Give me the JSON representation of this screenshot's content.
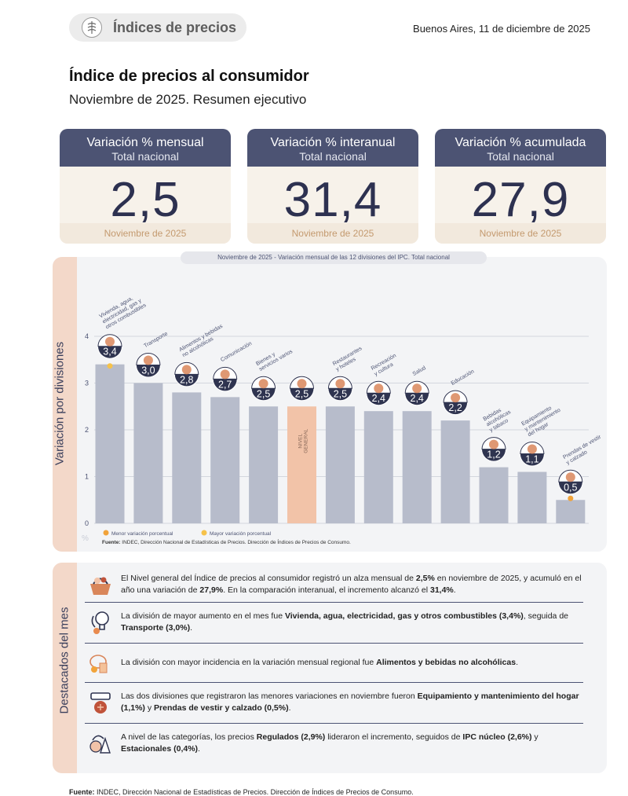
{
  "header": {
    "badge": "Índices de precios",
    "dateline": "Buenos Aires, 11 de diciembre de 2025",
    "title": "Índice de precios al consumidor",
    "subtitle": "Noviembre de 2025. Resumen ejecutivo"
  },
  "cards": [
    {
      "title": "Variación % mensual",
      "subtitle": "Total nacional",
      "value": "2,5",
      "period": "Noviembre de 2025"
    },
    {
      "title": "Variación % interanual",
      "subtitle": "Total nacional",
      "value": "31,4",
      "period": "Noviembre de 2025"
    },
    {
      "title": "Variación % acumulada",
      "subtitle": "Total nacional",
      "value": "27,9",
      "period": "Noviembre de 2025"
    }
  ],
  "chart_data": {
    "type": "bar",
    "title": "Noviembre de 2025 - Variación mensual de las 12 divisiones del IPC. Total nacional",
    "ylabel": "Variación por divisiones",
    "yunit": "%",
    "ylim": [
      0,
      4
    ],
    "yticks": [
      "0",
      "1",
      "2",
      "3",
      "4"
    ],
    "categories": [
      [
        "Vivienda, agua,",
        "electricidad, gas y",
        "otros combustibles"
      ],
      [
        "Transporte"
      ],
      [
        "Alimentos y bebidas",
        "no alcohólicas"
      ],
      [
        "Comunicación"
      ],
      [
        "Bienes y",
        "servicios varios"
      ],
      [
        "NIVEL",
        "GENERAL"
      ],
      [
        "Restaurantes",
        "y hoteles"
      ],
      [
        "Recreación",
        "y cultura"
      ],
      [
        "Salud"
      ],
      [
        "Educación"
      ],
      [
        "Bebidas",
        "alcohólicas",
        "y tabaco"
      ],
      [
        "Equipamiento",
        "y mantenimiento",
        "del hogar"
      ],
      [
        "Prendas de vestir",
        "y calzado"
      ]
    ],
    "values": [
      3.4,
      3.0,
      2.8,
      2.7,
      2.5,
      2.5,
      2.5,
      2.4,
      2.4,
      2.2,
      1.2,
      1.1,
      0.5
    ],
    "value_labels": [
      "3,4",
      "3,0",
      "2,8",
      "2,7",
      "2,5",
      "2,5",
      "2,5",
      "2,4",
      "2,4",
      "2,2",
      "1,2",
      "1,1",
      "0,5"
    ],
    "highlight_index": 5,
    "max_index": 0,
    "min_index": 12,
    "legend": [
      {
        "label": "Menor variación porcentual",
        "color": "#f1a33a"
      },
      {
        "label": "Mayor variación porcentual",
        "color": "#f6c24a"
      }
    ],
    "source_bold": "Fuente:",
    "source": "INDEC, Dirección Nacional de Estadísticas de Precios. Dirección de Índices de Precios de Consumo.",
    "colors": {
      "bar": "#b7bccb",
      "highlight": "#f2c3a8",
      "bubble": "#2f3450",
      "grid": "#c9ccd6"
    }
  },
  "highlights": {
    "side_label": "Destacados del mes",
    "items": [
      {
        "icon": "shopping-basket-icon",
        "parts": [
          [
            "El Nivel general del Índice de precios al consumidor registró un alza mensual de ",
            false
          ],
          [
            "2,5%",
            true
          ],
          [
            " en noviembre de 2025, y acumuló en el año una variación de ",
            false
          ],
          [
            "27,9%",
            true
          ],
          [
            ". En la comparación interanual, el incremento alcanzó el ",
            false
          ],
          [
            "31,4%",
            true
          ],
          [
            ".",
            false
          ]
        ]
      },
      {
        "icon": "utilities-icon",
        "parts": [
          [
            "La división de mayor aumento en el mes fue ",
            false
          ],
          [
            "Vivienda, agua, electricidad, gas y otros combustibles (3,4%)",
            true
          ],
          [
            ", seguida de ",
            false
          ],
          [
            "Transporte (3,0%)",
            true
          ],
          [
            ".",
            false
          ]
        ]
      },
      {
        "icon": "food-icon",
        "parts": [
          [
            "La división con mayor incidencia en la variación mensual regional fue ",
            false
          ],
          [
            "Alimentos y bebidas no alcohólicas",
            true
          ],
          [
            ".",
            false
          ]
        ]
      },
      {
        "icon": "household-icon",
        "parts": [
          [
            "Las dos divisiones que registraron las menores variaciones en noviembre fueron ",
            false
          ],
          [
            "Equipamiento y mantenimiento del hogar (1,1%)",
            true
          ],
          [
            " y ",
            false
          ],
          [
            "Prendas de vestir y calzado (0,5%)",
            true
          ],
          [
            ".",
            false
          ]
        ]
      },
      {
        "icon": "categories-icon",
        "parts": [
          [
            "A nivel de las categorías, los precios ",
            false
          ],
          [
            "Regulados (2,9%)",
            true
          ],
          [
            " lideraron el incremento, seguidos de ",
            false
          ],
          [
            "IPC núcleo (2,6%)",
            true
          ],
          [
            " y ",
            false
          ],
          [
            "Estacionales (0,4%)",
            true
          ],
          [
            ".",
            false
          ]
        ]
      }
    ]
  },
  "footer": {
    "source_bold": "Fuente:",
    "source": "INDEC, Dirección Nacional de Estadísticas de Precios. Dirección de Índices de Precios de Consumo."
  }
}
